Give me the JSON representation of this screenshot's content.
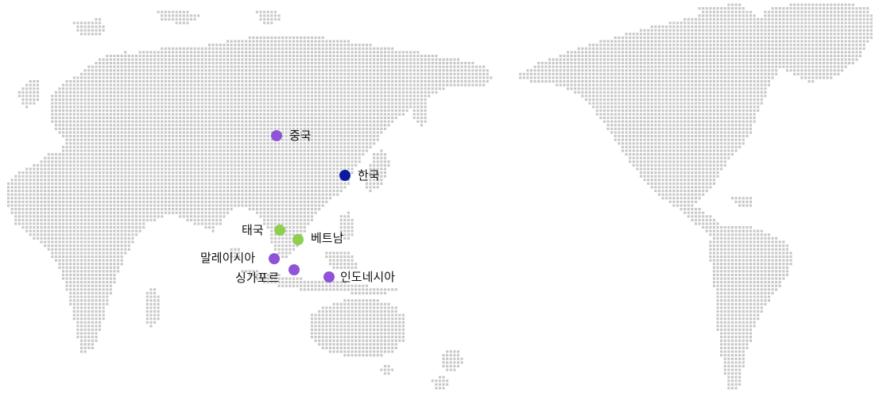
{
  "map": {
    "dot_color": "#c7c7c7",
    "locations": [
      {
        "id": "china",
        "label": "중국",
        "category": "purple"
      },
      {
        "id": "korea",
        "label": "한국",
        "category": "navy"
      },
      {
        "id": "thailand",
        "label": "태국",
        "category": "green"
      },
      {
        "id": "vietnam",
        "label": "베트남",
        "category": "green"
      },
      {
        "id": "malaysia",
        "label": "말레이시아",
        "category": "purple"
      },
      {
        "id": "singapore",
        "label": "싱가포르",
        "category": "purple"
      },
      {
        "id": "indonesia",
        "label": "인도네시아",
        "category": "purple"
      }
    ],
    "category_colors": {
      "purple": "#8f52d8",
      "navy": "#0b1aa0",
      "green": "#8fce4e"
    }
  }
}
